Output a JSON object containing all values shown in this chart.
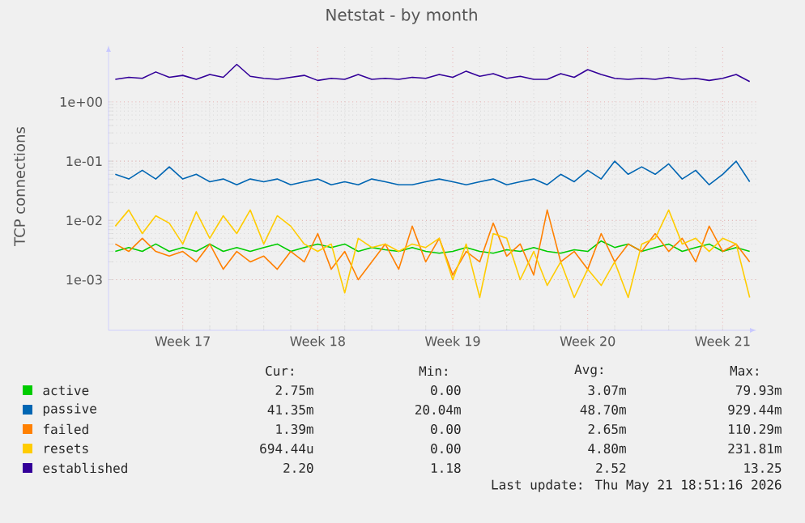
{
  "chart_data": {
    "type": "line",
    "title": "Netstat - by month",
    "ylabel": "TCP connections",
    "categories": [
      null,
      null,
      null,
      null,
      null,
      "Week 17",
      null,
      null,
      null,
      null,
      null,
      null,
      null,
      null,
      null,
      "Week 18",
      null,
      null,
      null,
      null,
      null,
      null,
      null,
      null,
      null,
      "Week 19",
      null,
      null,
      null,
      null,
      null,
      null,
      null,
      null,
      null,
      "Week 20",
      null,
      null,
      null,
      null,
      null,
      null,
      null,
      null,
      null,
      "Week 21",
      null,
      null
    ],
    "series": [
      {
        "name": "active",
        "color": "#00cc00",
        "values": [
          0.003,
          0.0035,
          0.003,
          0.004,
          0.003,
          0.0035,
          0.003,
          0.004,
          0.003,
          0.0035,
          0.003,
          0.0035,
          0.004,
          0.003,
          0.0035,
          0.004,
          0.0035,
          0.004,
          0.003,
          0.0035,
          0.0032,
          0.003,
          0.0035,
          0.003,
          0.0028,
          0.003,
          0.0035,
          0.003,
          0.0028,
          0.0032,
          0.003,
          0.0035,
          0.003,
          0.0028,
          0.0032,
          0.003,
          0.0045,
          0.0035,
          0.004,
          0.003,
          0.0035,
          0.004,
          0.003,
          0.0035,
          0.004,
          0.003,
          0.0035,
          0.003
        ]
      },
      {
        "name": "passive",
        "color": "#0066b3",
        "values": [
          0.06,
          0.05,
          0.07,
          0.05,
          0.08,
          0.05,
          0.06,
          0.045,
          0.05,
          0.04,
          0.05,
          0.045,
          0.05,
          0.04,
          0.045,
          0.05,
          0.04,
          0.045,
          0.04,
          0.05,
          0.045,
          0.04,
          0.04,
          0.045,
          0.05,
          0.045,
          0.04,
          0.045,
          0.05,
          0.04,
          0.045,
          0.05,
          0.04,
          0.06,
          0.045,
          0.07,
          0.05,
          0.1,
          0.06,
          0.08,
          0.06,
          0.09,
          0.05,
          0.07,
          0.04,
          0.06,
          0.1,
          0.045
        ]
      },
      {
        "name": "failed",
        "color": "#ff8000",
        "values": [
          0.004,
          0.003,
          0.005,
          0.003,
          0.0025,
          0.003,
          0.002,
          0.004,
          0.0015,
          0.003,
          0.002,
          0.0025,
          0.0015,
          0.003,
          0.002,
          0.006,
          0.0015,
          0.003,
          0.001,
          0.002,
          0.004,
          0.0015,
          0.008,
          0.002,
          0.005,
          0.0012,
          0.003,
          0.002,
          0.009,
          0.0025,
          0.004,
          0.0012,
          0.015,
          0.002,
          0.003,
          0.0015,
          0.006,
          0.002,
          0.004,
          0.003,
          0.006,
          0.003,
          0.005,
          0.002,
          0.008,
          0.003,
          0.004,
          0.002
        ]
      },
      {
        "name": "resets",
        "color": "#ffcc00",
        "values": [
          0.008,
          0.015,
          0.006,
          0.012,
          0.009,
          0.004,
          0.014,
          0.005,
          0.012,
          0.006,
          0.015,
          0.004,
          0.012,
          0.008,
          0.004,
          0.003,
          0.004,
          0.0006,
          0.005,
          0.0035,
          0.004,
          0.003,
          0.004,
          0.0035,
          0.005,
          0.001,
          0.004,
          0.0005,
          0.006,
          0.005,
          0.001,
          0.003,
          0.0008,
          0.002,
          0.0005,
          0.0015,
          0.0008,
          0.002,
          0.0005,
          0.004,
          0.005,
          0.015,
          0.004,
          0.005,
          0.003,
          0.005,
          0.004,
          0.0005
        ]
      },
      {
        "name": "established",
        "color": "#330099",
        "values": [
          2.4,
          2.6,
          2.5,
          3.2,
          2.6,
          2.8,
          2.4,
          2.9,
          2.6,
          4.3,
          2.7,
          2.5,
          2.4,
          2.6,
          2.8,
          2.3,
          2.5,
          2.4,
          2.9,
          2.4,
          2.5,
          2.4,
          2.6,
          2.5,
          2.9,
          2.6,
          3.3,
          2.7,
          3.0,
          2.5,
          2.7,
          2.4,
          2.4,
          3.0,
          2.6,
          3.5,
          2.9,
          2.5,
          2.4,
          2.5,
          2.4,
          2.6,
          2.4,
          2.5,
          2.3,
          2.5,
          2.9,
          2.2
        ]
      }
    ],
    "ylim": [
      0.00014,
      9
    ],
    "yticks": [
      {
        "value": 0.001,
        "label": "1e-03"
      },
      {
        "value": 0.01,
        "label": "1e-02"
      },
      {
        "value": 0.1,
        "label": "1e-01"
      },
      {
        "value": 1,
        "label": "1e+00"
      }
    ],
    "log": true,
    "grid": true,
    "legend": "bottom",
    "annotations": [
      "Cur:",
      "Min:",
      "Avg:",
      "Max:",
      "2.75m",
      "0.00",
      "3.07m",
      "79.93m",
      "41.35m",
      "20.04m",
      "48.70m",
      "929.44m",
      "1.39m",
      "0.00",
      "2.65m",
      "110.29m",
      "694.44u",
      "0.00",
      "4.80m",
      "231.81m",
      "2.20",
      "1.18",
      "2.52",
      "13.25",
      "Last update: Thu May 21 18:51:16 2026"
    ]
  }
}
